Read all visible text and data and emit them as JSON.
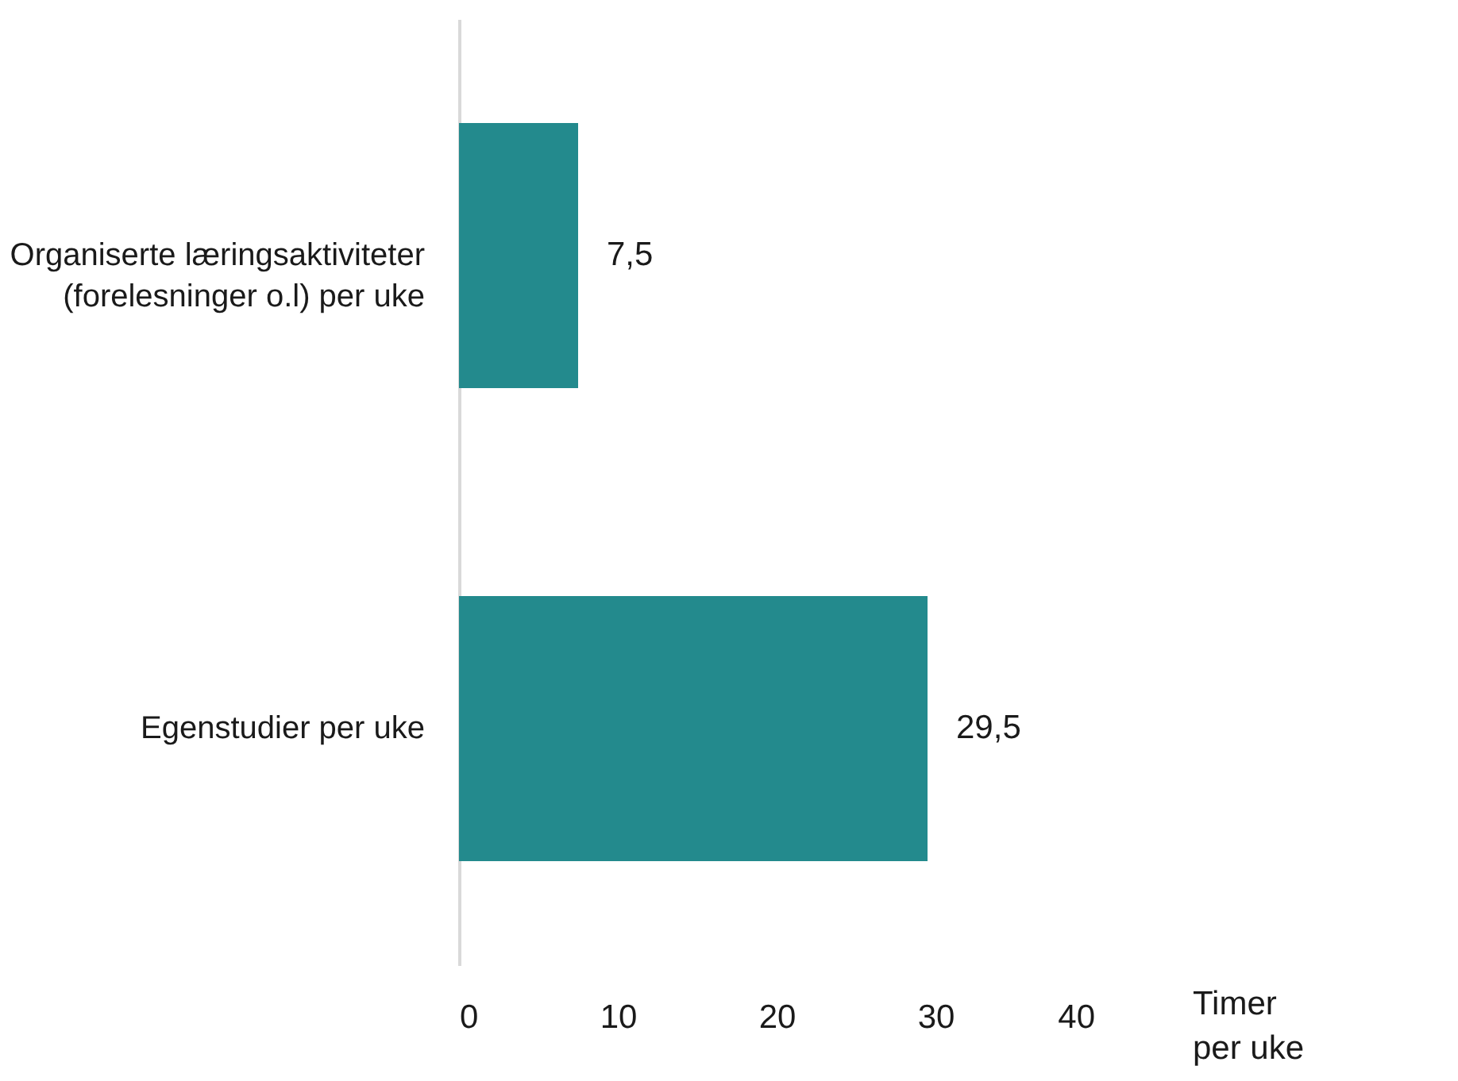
{
  "chart_data": {
    "type": "bar",
    "orientation": "horizontal",
    "categories": [
      "Organiserte læringsaktiviteter\n(forelesninger o.l) per uke",
      "Egenstudier per uke"
    ],
    "values": [
      7.5,
      29.5
    ],
    "value_labels": [
      "7,5",
      "29,5"
    ],
    "color": "#238a8d",
    "xlim": [
      0,
      40
    ],
    "xticks": [
      0,
      10,
      20,
      30,
      40
    ],
    "xlabel": "Timer\nper uke"
  }
}
